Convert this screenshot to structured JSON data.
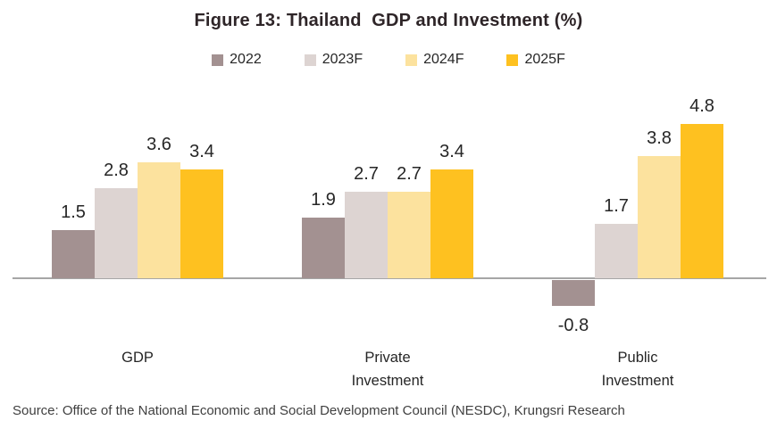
{
  "title": "Figure 13: Thailand  GDP and Investment (%)",
  "source": "Source: Office of the National Economic and Social Development Council (NESDC), Krungsri Research",
  "colors": {
    "axis": "#a6a6a6",
    "title_text": "#2e2528",
    "label_text": "#262626",
    "source_text": "#404040"
  },
  "chart_data": {
    "type": "bar",
    "title": "Figure 13: Thailand GDP and Investment (%)",
    "categories": [
      "GDP",
      "Private Investment",
      "Public Investment"
    ],
    "series": [
      {
        "name": "2022",
        "color": "#a39191",
        "values": [
          1.5,
          1.9,
          -0.8
        ]
      },
      {
        "name": "2023F",
        "color": "#ddd4d2",
        "values": [
          2.8,
          2.7,
          1.7
        ]
      },
      {
        "name": "2024F",
        "color": "#fce29e",
        "values": [
          3.6,
          2.7,
          3.8
        ]
      },
      {
        "name": "2025F",
        "color": "#fec120",
        "values": [
          3.4,
          3.4,
          4.8
        ]
      }
    ],
    "value_labels": true,
    "xlabel": "",
    "ylabel": "",
    "ylim": [
      -1.2,
      5.2
    ],
    "grid": false,
    "legend_position": "top",
    "baseline": 0
  }
}
